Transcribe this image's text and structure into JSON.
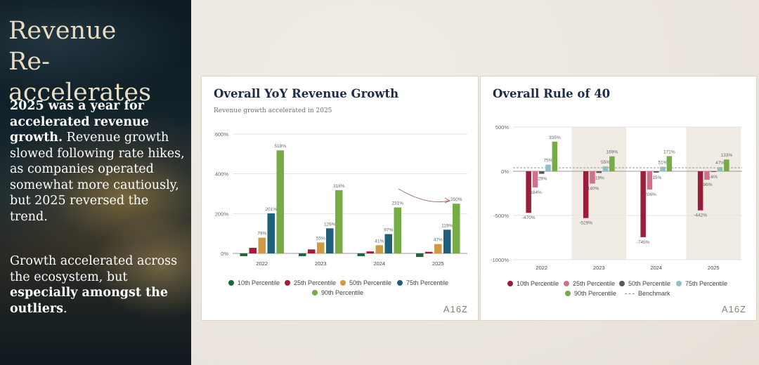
{
  "sidebar": {
    "title_line1": "Revenue",
    "title_line2": "Re-accelerates",
    "p1_bold": "2025 was a year for accelerated revenue growth.",
    "p1_rest": " Revenue growth slowed following rate hikes, as companies operated somewhat more cautiously, but 2025 reversed the trend.",
    "p2_a": "Growth accelerated across the ecosystem, but ",
    "p2_bold": "especially amongst the outliers",
    "p2_end": "."
  },
  "logo": "A16Z",
  "colors": {
    "p10_growth": "#1a6b3a",
    "p25_growth": "#a01e3a",
    "p50": "#d09a45",
    "p75_growth": "#1e5f7a",
    "p90": "#76ab45",
    "p10_rule": "#9a1e3a",
    "p25_rule": "#d0708c",
    "p50_rule": "#555a5a",
    "p75_rule": "#8fc0c6",
    "benchmark": "#999999",
    "annotation": "#a07060"
  },
  "chart_data": [
    {
      "type": "bar",
      "title": "Overall YoY Revenue Growth",
      "subtitle": "Revenue growth accelerated in 2025",
      "categories": [
        "2022",
        "2023",
        "2024",
        "2025"
      ],
      "ylim": [
        -50,
        600
      ],
      "yticks": [
        "600%",
        "400%",
        "200%",
        "0%"
      ],
      "series": [
        {
          "name": "10th Percentile",
          "values": [
            -14,
            -14,
            -14,
            -18
          ],
          "labels": [
            "",
            "",
            "",
            ""
          ]
        },
        {
          "name": "25th Percentile",
          "values": [
            28,
            20,
            10,
            8
          ],
          "labels": [
            "",
            "",
            "",
            ""
          ]
        },
        {
          "name": "50th Percentile",
          "values": [
            79,
            55,
            41,
            47
          ],
          "labels": [
            "79%",
            "55%",
            "41%",
            "47%"
          ]
        },
        {
          "name": "75th Percentile",
          "values": [
            201,
            126,
            97,
            119
          ],
          "labels": [
            "201%",
            "126%",
            "97%",
            "119%"
          ]
        },
        {
          "name": "90th Percentile",
          "values": [
            518,
            318,
            231,
            250
          ],
          "labels": [
            "518%",
            "318%",
            "231%",
            "250%"
          ]
        }
      ],
      "grid": true,
      "legend_position": "bottom"
    },
    {
      "type": "bar",
      "title": "Overall Rule of 40",
      "categories": [
        "2022",
        "2023",
        "2024",
        "2025"
      ],
      "ylim": [
        -1000,
        500
      ],
      "yticks": [
        "500%",
        "0%",
        "-500%",
        "-1000%"
      ],
      "series": [
        {
          "name": "10th Percentile",
          "values": [
            -470,
            -529,
            -745,
            -442
          ],
          "labels": [
            "-470%",
            "-529%",
            "-745%",
            "-442%"
          ]
        },
        {
          "name": "25th Percentile",
          "values": [
            -184,
            -140,
            -206,
            -96
          ],
          "labels": [
            "-184%",
            "-140%",
            "-206%",
            "-96%"
          ]
        },
        {
          "name": "50th Percentile",
          "values": [
            -29,
            -19,
            -15,
            -6
          ],
          "labels": [
            "-29%",
            "-19%",
            "-15%",
            "-6%"
          ]
        },
        {
          "name": "75th Percentile",
          "values": [
            75,
            55,
            51,
            47
          ],
          "labels": [
            "75%",
            "55%",
            "51%",
            "47%"
          ]
        },
        {
          "name": "90th Percentile",
          "values": [
            335,
            169,
            171,
            133
          ],
          "labels": [
            "335%",
            "169%",
            "171%",
            "133%"
          ]
        }
      ],
      "benchmark": {
        "name": "Benchmark",
        "value": 40
      },
      "highlighted_categories": [
        "2023",
        "2025"
      ],
      "legend_position": "bottom"
    }
  ]
}
